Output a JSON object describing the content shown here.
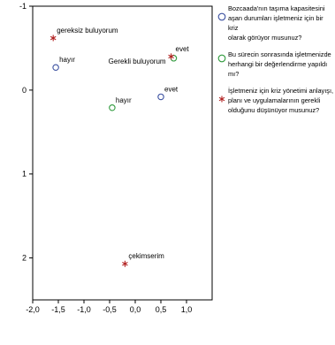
{
  "chart_data": {
    "type": "scatter",
    "title": "",
    "xlabel": "",
    "ylabel": "",
    "xlim": [
      -2.0,
      1.5
    ],
    "ylim": [
      -1.0,
      2.5
    ],
    "y_inverted": true,
    "grid": false,
    "legend_position": "right",
    "x_ticks": [
      "-2,0",
      "-1,5",
      "-1,0",
      "-0,5",
      "0,0",
      "0,5",
      "1,0"
    ],
    "x_tick_values": [
      -2.0,
      -1.5,
      -1.0,
      -0.5,
      0.0,
      0.5,
      1.0
    ],
    "y_ticks": [
      "-1",
      "0",
      "1",
      "2"
    ],
    "y_tick_values": [
      -1,
      0,
      1,
      2
    ],
    "series": [
      {
        "name": "Bozcaada'nın taşıma kapasitesini\naşan durumları işletmeniz için bir kriz\nolarak görüyor musunuz?",
        "marker": "circle",
        "color": "#3d52a1",
        "points": [
          {
            "x": -1.55,
            "y": -0.27,
            "label": "hayır"
          },
          {
            "x": 0.5,
            "y": 0.08,
            "label": "evet"
          }
        ]
      },
      {
        "name": "Bu sürecin sonrasında işletmenizde\nherhangi bir değerlendirme yapıldı mı?",
        "marker": "circle",
        "color": "#2e9a3c",
        "points": [
          {
            "x": -0.45,
            "y": 0.21,
            "label": "hayır"
          },
          {
            "x": 0.75,
            "y": -0.38,
            "label": "evet"
          }
        ]
      },
      {
        "name": "İşletmeniz için kriz yönetimi anlayışı,\nplanı ve uygulamalarının gerekli\nolduğunu düşünüyor musunuz?",
        "marker": "star",
        "color": "#b22222",
        "points": [
          {
            "x": -1.6,
            "y": -0.62,
            "label": "gereksiz buluyorum"
          },
          {
            "x": 0.7,
            "y": -0.4,
            "label": "Gerekli buluyorum"
          },
          {
            "x": -0.2,
            "y": 2.07,
            "label": "çekimserim"
          }
        ]
      }
    ]
  }
}
